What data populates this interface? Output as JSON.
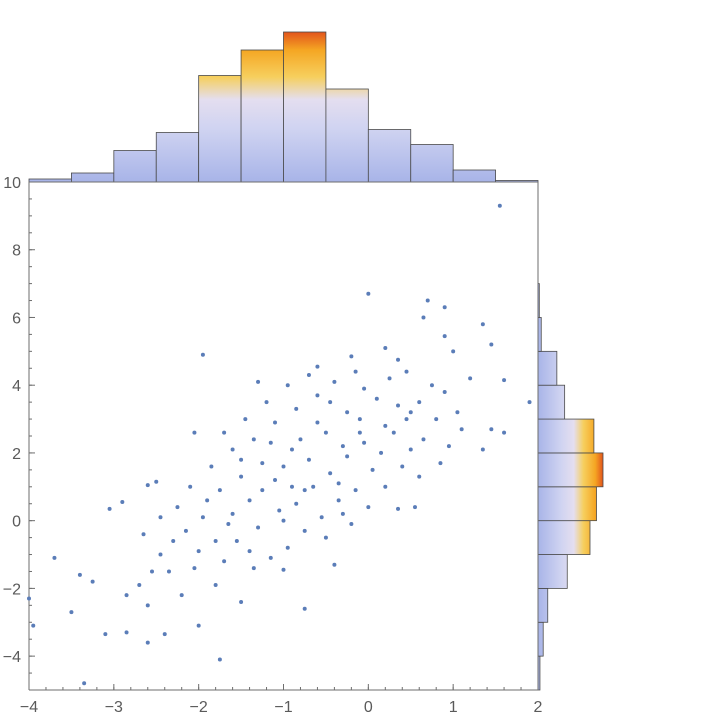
{
  "chart_data": {
    "type": "scatter",
    "title": "",
    "xlabel": "",
    "ylabel": "",
    "xlim": [
      -4,
      2
    ],
    "ylim": [
      -5,
      10
    ],
    "x_ticks": [
      -4,
      -3,
      -2,
      -1,
      0,
      1,
      2
    ],
    "y_ticks": [
      -4,
      -2,
      0,
      2,
      4,
      6,
      8,
      10
    ],
    "x_tick_labels": [
      "−4",
      "−3",
      "−2",
      "−1",
      "0",
      "1",
      "2"
    ],
    "y_tick_labels": [
      "−4",
      "−2",
      "0",
      "2",
      "4",
      "6",
      "8",
      "10"
    ],
    "point_color": "#5b7db8",
    "grid": false,
    "points": [
      [
        1.55,
        9.3
      ],
      [
        0.0,
        6.7
      ],
      [
        0.7,
        6.5
      ],
      [
        0.9,
        6.3
      ],
      [
        1.35,
        5.8
      ],
      [
        0.65,
        6.0
      ],
      [
        1.45,
        5.2
      ],
      [
        0.9,
        5.45
      ],
      [
        -1.95,
        4.9
      ],
      [
        0.2,
        5.1
      ],
      [
        1.0,
        5.0
      ],
      [
        1.2,
        4.2
      ],
      [
        1.6,
        4.15
      ],
      [
        1.9,
        3.5
      ],
      [
        -1.3,
        4.1
      ],
      [
        1.45,
        2.7
      ],
      [
        -0.2,
        4.85
      ],
      [
        -0.6,
        4.55
      ],
      [
        0.35,
        4.75
      ],
      [
        -2.05,
        2.6
      ],
      [
        -1.5,
        1.8
      ],
      [
        -2.5,
        1.15
      ],
      [
        -2.6,
        1.05
      ],
      [
        -2.9,
        0.55
      ],
      [
        -3.05,
        0.35
      ],
      [
        -3.7,
        -1.1
      ],
      [
        -3.4,
        -1.6
      ],
      [
        -3.25,
        -1.8
      ],
      [
        -4.0,
        -2.3
      ],
      [
        -3.5,
        -2.7
      ],
      [
        -3.95,
        -3.1
      ],
      [
        -3.1,
        -3.35
      ],
      [
        -2.85,
        -3.3
      ],
      [
        -2.6,
        -3.6
      ],
      [
        -2.4,
        -3.35
      ],
      [
        -1.75,
        -4.1
      ],
      [
        -3.35,
        -4.8
      ],
      [
        -0.75,
        -2.6
      ],
      [
        -1.5,
        -2.4
      ],
      [
        -2.0,
        -3.1
      ],
      [
        -1.0,
        -1.45
      ],
      [
        -0.4,
        -1.3
      ],
      [
        -2.2,
        -2.2
      ],
      [
        -1.8,
        -1.9
      ],
      [
        1.35,
        2.1
      ],
      [
        1.6,
        2.6
      ],
      [
        0.95,
        2.2
      ],
      [
        0.4,
        1.6
      ],
      [
        0.55,
        0.4
      ],
      [
        0.35,
        0.35
      ],
      [
        0.6,
        1.3
      ],
      [
        0.8,
        3.0
      ],
      [
        0.9,
        3.8
      ],
      [
        0.5,
        3.2
      ],
      [
        0.2,
        2.8
      ],
      [
        -0.1,
        3.0
      ],
      [
        -0.3,
        2.2
      ],
      [
        -0.5,
        2.6
      ],
      [
        -0.7,
        1.8
      ],
      [
        -0.9,
        2.1
      ],
      [
        -1.1,
        1.2
      ],
      [
        -1.25,
        1.7
      ],
      [
        -1.4,
        0.6
      ],
      [
        -1.6,
        0.2
      ],
      [
        -1.75,
        0.9
      ],
      [
        -1.95,
        0.1
      ],
      [
        -2.15,
        -0.3
      ],
      [
        -2.3,
        -0.6
      ],
      [
        -2.45,
        -1.0
      ],
      [
        -2.55,
        -1.5
      ],
      [
        -2.7,
        -1.9
      ],
      [
        -2.85,
        -2.2
      ],
      [
        -1.55,
        -0.6
      ],
      [
        -1.3,
        -0.2
      ],
      [
        -1.05,
        0.3
      ],
      [
        -0.85,
        0.5
      ],
      [
        -0.65,
        1.0
      ],
      [
        -0.45,
        1.4
      ],
      [
        -0.25,
        1.9
      ],
      [
        -0.05,
        2.3
      ],
      [
        0.15,
        2.0
      ],
      [
        0.3,
        2.6
      ],
      [
        0.45,
        3.0
      ],
      [
        0.6,
        3.5
      ],
      [
        0.75,
        4.0
      ],
      [
        1.05,
        3.2
      ],
      [
        -0.15,
        0.9
      ],
      [
        -0.35,
        0.6
      ],
      [
        -0.55,
        0.1
      ],
      [
        -0.75,
        -0.3
      ],
      [
        -0.95,
        -0.8
      ],
      [
        -1.15,
        -1.1
      ],
      [
        -1.35,
        -1.4
      ],
      [
        -1.7,
        -1.2
      ],
      [
        -2.0,
        -0.9
      ],
      [
        -2.25,
        0.4
      ],
      [
        -2.45,
        0.1
      ],
      [
        -2.65,
        -0.4
      ],
      [
        -1.85,
        1.6
      ],
      [
        -1.6,
        2.1
      ],
      [
        -1.35,
        2.4
      ],
      [
        -1.1,
        2.9
      ],
      [
        -0.85,
        3.3
      ],
      [
        -0.6,
        3.7
      ],
      [
        -0.4,
        4.1
      ],
      [
        -0.15,
        4.4
      ],
      [
        0.1,
        3.6
      ],
      [
        0.25,
        4.2
      ],
      [
        0.45,
        4.4
      ],
      [
        -1.2,
        3.5
      ],
      [
        -0.95,
        4.0
      ],
      [
        -0.7,
        4.3
      ],
      [
        -1.45,
        3.0
      ],
      [
        -1.7,
        2.6
      ],
      [
        -0.25,
        3.2
      ],
      [
        0.05,
        1.5
      ],
      [
        -0.5,
        -0.5
      ],
      [
        -0.2,
        -0.1
      ],
      [
        0.0,
        0.4
      ],
      [
        -1.0,
        1.6
      ],
      [
        -0.8,
        2.4
      ],
      [
        -0.6,
        2.9
      ],
      [
        -1.25,
        0.9
      ],
      [
        -1.5,
        1.3
      ],
      [
        -1.9,
        0.6
      ],
      [
        -2.1,
        1.0
      ],
      [
        -2.35,
        -1.5
      ],
      [
        -1.65,
        -0.1
      ],
      [
        -1.4,
        -0.9
      ],
      [
        -0.3,
        0.2
      ],
      [
        0.2,
        1.0
      ],
      [
        0.65,
        2.4
      ],
      [
        0.85,
        1.7
      ],
      [
        1.1,
        2.7
      ],
      [
        -0.05,
        3.9
      ],
      [
        0.35,
        3.4
      ],
      [
        -0.45,
        3.5
      ],
      [
        -1.0,
        0.0
      ],
      [
        -0.75,
        0.9
      ],
      [
        -1.8,
        -0.6
      ],
      [
        -2.05,
        -1.4
      ],
      [
        -2.6,
        -2.5
      ],
      [
        -0.9,
        1.0
      ],
      [
        -1.15,
        2.3
      ],
      [
        -0.35,
        1.1
      ],
      [
        -0.1,
        2.6
      ],
      [
        0.5,
        2.1
      ]
    ],
    "top_histogram": {
      "bins": [
        -4,
        -3.5,
        -3,
        -2.5,
        -2,
        -1.5,
        -1,
        -0.5,
        0,
        0.5,
        1,
        1.5,
        2
      ],
      "heights": [
        0.02,
        0.06,
        0.21,
        0.33,
        0.71,
        0.88,
        1.0,
        0.62,
        0.35,
        0.25,
        0.08,
        0.01
      ]
    },
    "right_histogram": {
      "bins": [
        -5,
        -4,
        -3,
        -2,
        -1,
        0,
        1,
        2,
        3,
        4,
        5,
        6,
        7
      ],
      "heights": [
        0.03,
        0.08,
        0.15,
        0.45,
        0.8,
        0.9,
        1.0,
        0.86,
        0.41,
        0.29,
        0.05,
        0.02
      ]
    }
  }
}
